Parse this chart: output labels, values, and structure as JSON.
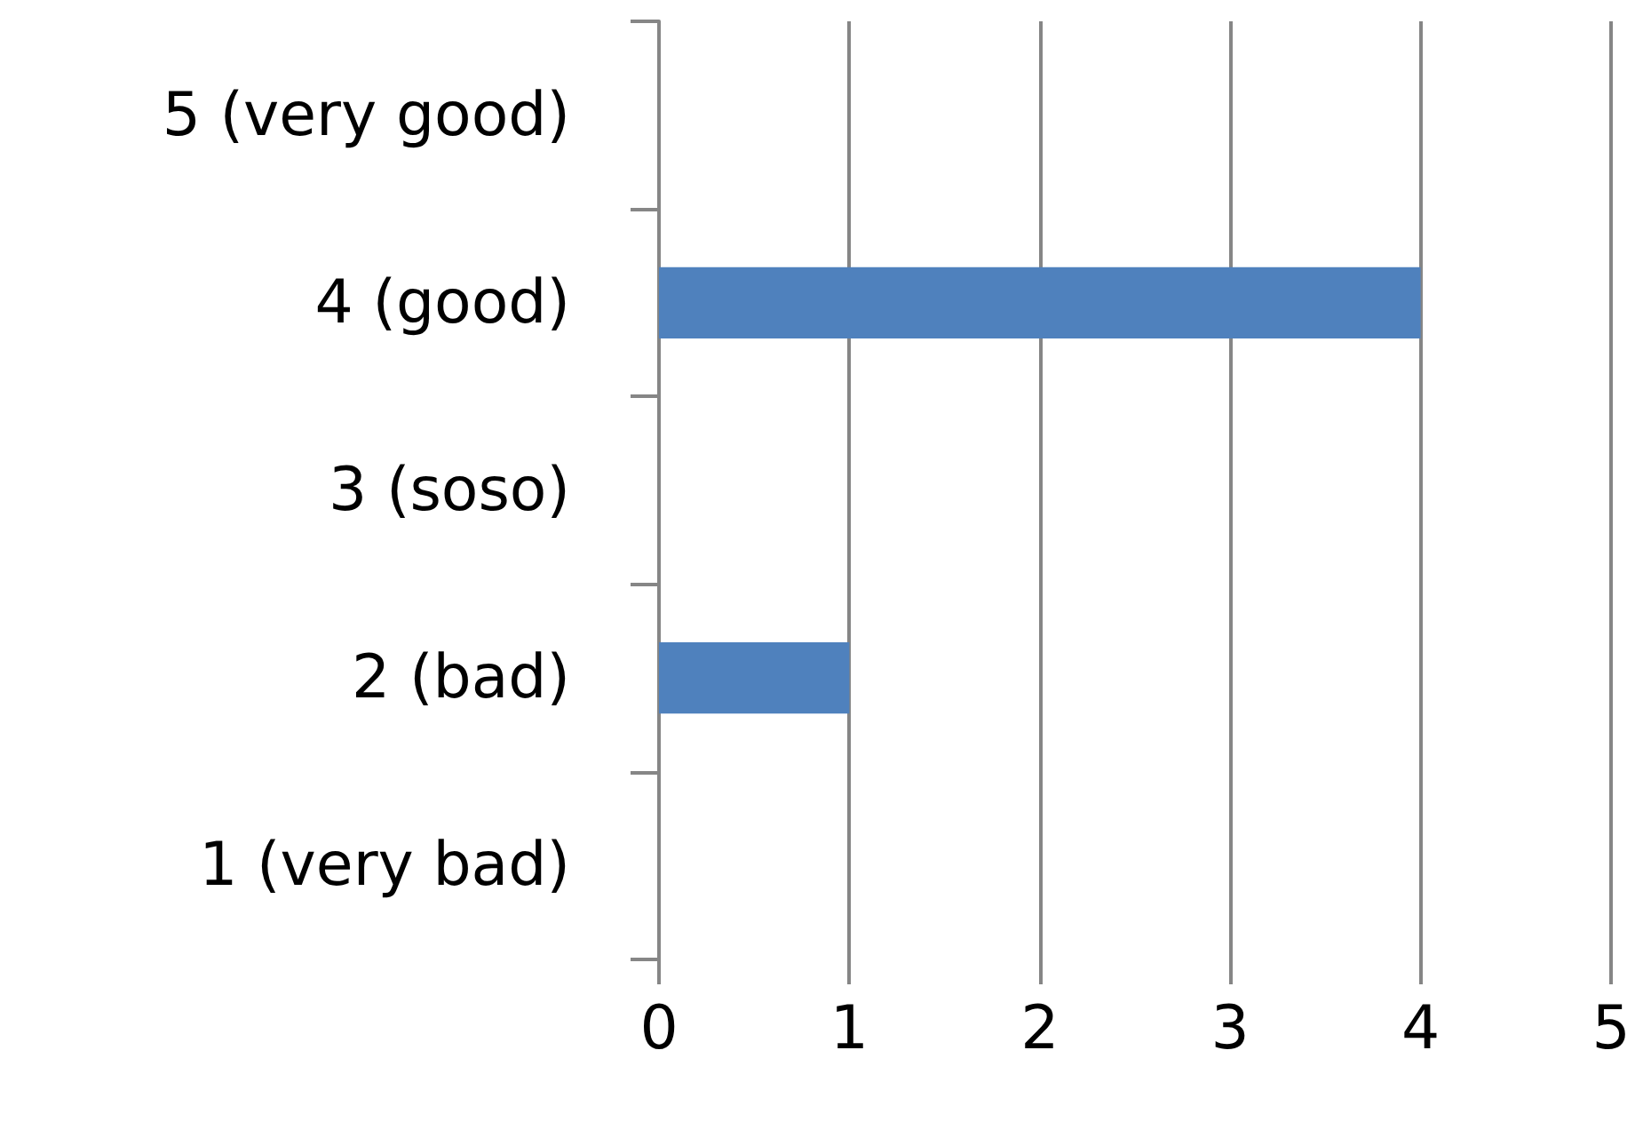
{
  "chart_data": {
    "type": "bar",
    "orientation": "horizontal",
    "categories": [
      "5 (very good)",
      "4 (good)",
      "3 (soso)",
      "2 (bad)",
      "1 (very bad)"
    ],
    "values": [
      0,
      4,
      0,
      1,
      0
    ],
    "color": "#4f81bd",
    "xlim": [
      0,
      5
    ],
    "xticks": [
      0,
      1,
      2,
      3,
      4,
      5
    ],
    "grid": "x"
  }
}
